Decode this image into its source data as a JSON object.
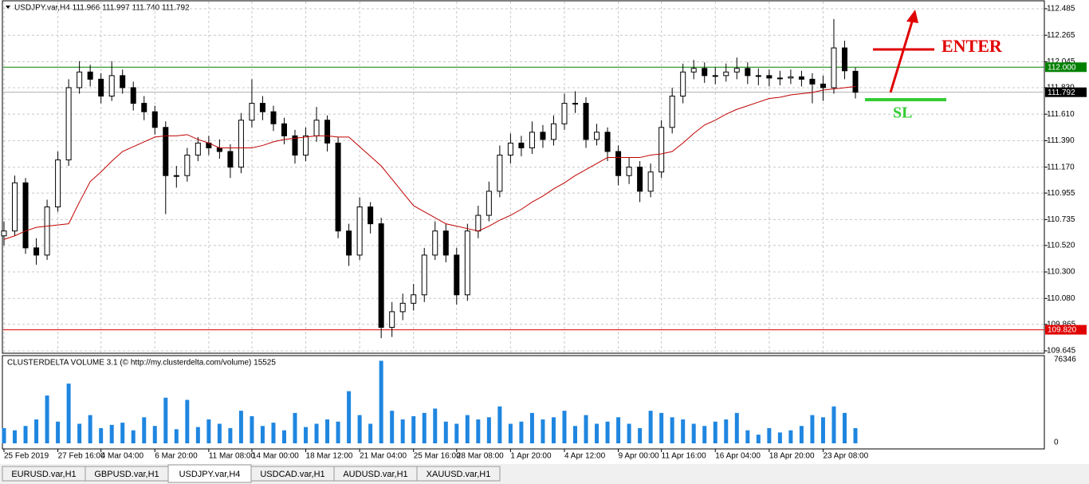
{
  "header": {
    "symbol_info": "USDJPY.var,H4  111.966 111.997 111.740 111.792"
  },
  "chart_data": [
    {
      "type": "candlestick",
      "categories": [
        "25 Feb 2019",
        null,
        null,
        null,
        null,
        "27 Feb 16:00",
        null,
        null,
        null,
        "4 Mar 04:00",
        null,
        null,
        null,
        null,
        "6 Mar 20:00",
        null,
        null,
        null,
        null,
        "11 Mar 08:00",
        null,
        null,
        null,
        "14 Mar 00:00",
        null,
        null,
        null,
        null,
        "18 Mar 12:00",
        null,
        null,
        null,
        null,
        "21 Mar 04:00",
        null,
        null,
        null,
        null,
        "25 Mar 16:00",
        null,
        null,
        null,
        "28 Mar 08:00",
        null,
        null,
        null,
        null,
        "1 Apr 20:00",
        null,
        null,
        null,
        null,
        "4 Apr 12:00",
        null,
        null,
        null,
        null,
        "9 Apr 00:00",
        null,
        null,
        null,
        "11 Apr 16:00",
        null,
        null,
        null,
        null,
        "16 Apr 04:00",
        null,
        null,
        null,
        null,
        "18 Apr 20:00",
        null,
        null,
        null,
        null,
        "23 Apr 08:00",
        null,
        null,
        null
      ],
      "open": [
        110.6,
        110.64,
        111.04,
        110.5,
        110.44,
        110.84,
        111.23,
        111.83,
        111.96,
        111.9,
        111.76,
        111.93,
        111.83,
        111.7,
        111.63,
        111.5,
        111.1,
        111.1,
        111.27,
        111.37,
        111.33,
        111.3,
        111.17,
        111.56,
        111.7,
        111.63,
        111.53,
        111.43,
        111.27,
        111.43,
        111.56,
        111.37,
        110.64,
        110.44,
        110.84,
        110.7,
        109.84,
        109.97,
        110.04,
        110.11,
        110.44,
        110.64,
        110.44,
        110.11,
        110.64,
        110.77,
        110.97,
        111.27,
        111.37,
        111.33,
        111.46,
        111.4,
        111.53,
        111.7,
        111.7,
        111.4,
        111.46,
        111.3,
        111.1,
        111.17,
        110.97,
        111.13,
        111.5,
        111.76,
        111.96,
        111.99,
        111.93,
        111.93,
        111.96,
        111.99,
        111.93,
        111.93,
        111.91,
        111.91,
        111.92,
        111.9,
        111.86,
        111.83,
        112.16,
        111.966
      ],
      "high": [
        110.72,
        111.1,
        111.08,
        110.58,
        110.9,
        111.3,
        111.9,
        112.05,
        112.02,
        111.95,
        112.05,
        111.98,
        111.88,
        111.76,
        111.68,
        111.55,
        111.18,
        111.33,
        111.42,
        111.43,
        111.4,
        111.36,
        111.62,
        111.9,
        111.76,
        111.68,
        111.58,
        111.48,
        111.5,
        111.67,
        111.6,
        111.42,
        110.7,
        110.92,
        110.88,
        110.75,
        110.05,
        110.12,
        110.2,
        110.5,
        110.72,
        110.7,
        110.5,
        110.7,
        110.85,
        111.05,
        111.35,
        111.45,
        111.43,
        111.55,
        111.52,
        111.6,
        111.78,
        111.8,
        111.75,
        111.53,
        111.5,
        111.35,
        111.25,
        111.22,
        111.2,
        111.56,
        111.83,
        112.03,
        112.06,
        112.04,
        112.0,
        112.03,
        112.08,
        112.04,
        111.99,
        111.98,
        111.97,
        111.98,
        111.97,
        111.95,
        111.93,
        112.4,
        112.22,
        111.997
      ],
      "low": [
        110.52,
        110.6,
        110.45,
        110.36,
        110.4,
        110.8,
        111.18,
        111.78,
        111.84,
        111.7,
        111.72,
        111.78,
        111.64,
        111.56,
        111.44,
        110.78,
        111.0,
        111.05,
        111.22,
        111.27,
        111.24,
        111.08,
        111.12,
        111.5,
        111.56,
        111.47,
        111.36,
        111.2,
        111.22,
        111.38,
        111.3,
        110.58,
        110.35,
        110.4,
        110.62,
        109.75,
        109.76,
        109.9,
        109.98,
        110.05,
        110.4,
        110.38,
        110.03,
        110.06,
        110.58,
        110.72,
        110.92,
        111.2,
        111.26,
        111.28,
        111.33,
        111.35,
        111.48,
        111.62,
        111.33,
        111.35,
        111.22,
        111.02,
        111.03,
        110.88,
        110.92,
        111.08,
        111.45,
        111.7,
        111.9,
        111.87,
        111.86,
        111.88,
        111.9,
        111.86,
        111.85,
        111.84,
        111.85,
        111.86,
        111.84,
        111.7,
        111.72,
        111.78,
        111.9,
        111.74
      ],
      "close": [
        110.64,
        111.04,
        110.5,
        110.44,
        110.84,
        111.23,
        111.83,
        111.96,
        111.9,
        111.76,
        111.93,
        111.83,
        111.7,
        111.63,
        111.5,
        111.1,
        111.1,
        111.27,
        111.37,
        111.33,
        111.3,
        111.17,
        111.56,
        111.7,
        111.63,
        111.53,
        111.43,
        111.27,
        111.43,
        111.56,
        111.37,
        110.64,
        110.44,
        110.84,
        110.7,
        109.84,
        109.97,
        110.04,
        110.11,
        110.44,
        110.64,
        110.44,
        110.11,
        110.64,
        110.77,
        110.97,
        111.27,
        111.37,
        111.33,
        111.46,
        111.4,
        111.53,
        111.7,
        111.7,
        111.4,
        111.46,
        111.3,
        111.1,
        111.17,
        110.97,
        111.13,
        111.5,
        111.76,
        111.96,
        111.99,
        111.93,
        111.93,
        111.96,
        111.99,
        111.93,
        111.93,
        111.91,
        111.91,
        111.92,
        111.9,
        111.86,
        111.83,
        112.16,
        111.97,
        111.792
      ],
      "moving_average": {
        "color": "#c00000",
        "values": [
          110.57,
          110.6,
          110.64,
          110.67,
          110.68,
          110.69,
          110.7,
          110.88,
          111.05,
          111.13,
          111.22,
          111.3,
          111.34,
          111.38,
          111.42,
          111.43,
          111.43,
          111.44,
          111.4,
          111.37,
          111.33,
          111.33,
          111.33,
          111.33,
          111.35,
          111.38,
          111.4,
          111.41,
          111.42,
          111.43,
          111.43,
          111.42,
          111.42,
          111.34,
          111.26,
          111.18,
          111.07,
          110.96,
          110.85,
          110.8,
          110.75,
          110.7,
          110.68,
          110.66,
          110.64,
          110.68,
          110.73,
          110.77,
          110.82,
          110.88,
          110.93,
          110.99,
          111.04,
          111.1,
          111.15,
          111.2,
          111.25,
          111.25,
          111.25,
          111.25,
          111.27,
          111.28,
          111.3,
          111.37,
          111.45,
          111.52,
          111.56,
          111.61,
          111.65,
          111.68,
          111.71,
          111.74,
          111.75,
          111.77,
          111.78,
          111.79,
          111.81,
          111.82,
          111.83,
          111.84
        ]
      },
      "ylim": [
        109.645,
        112.485
      ],
      "yticks": [
        112.485,
        112.265,
        112.045,
        {
          "value": 111.83,
          "label": "111.830"
        },
        {
          "value": 111.61,
          "label": "111.610"
        },
        {
          "value": 111.39,
          "label": "111.390"
        },
        {
          "value": 111.17,
          "label": "111.170"
        },
        110.955,
        110.735,
        {
          "value": 110.52,
          "label": "110.520"
        },
        {
          "value": 110.3,
          "label": "110.300"
        },
        {
          "value": 110.08,
          "label": "110.080"
        },
        109.865,
        109.645
      ],
      "grid": true,
      "levels": [
        {
          "value": 112,
          "label": "112.000",
          "color": "#008000"
        },
        {
          "value": 111.792,
          "label": "111.792",
          "color": "#b0b0b0"
        },
        {
          "value": 109.82,
          "label": "109.820",
          "color": "#e00000"
        }
      ]
    },
    {
      "type": "bar",
      "title": "CLUSTERDELTA VOLUME 3.1 (© http://my.clusterdelta.com/volume) 15525",
      "color": "#1f86e0",
      "values": [
        14000,
        12000,
        16000,
        22000,
        44000,
        20000,
        55000,
        18000,
        26000,
        14000,
        17000,
        19000,
        12000,
        24000,
        16000,
        42000,
        13000,
        40000,
        15000,
        22000,
        18000,
        14000,
        30000,
        25000,
        16000,
        19000,
        12000,
        28000,
        15000,
        18000,
        22000,
        20000,
        48000,
        26000,
        18000,
        76000,
        30000,
        22000,
        25000,
        28000,
        32000,
        20000,
        18000,
        26000,
        22000,
        24000,
        34000,
        18000,
        20000,
        28000,
        22000,
        24000,
        30000,
        16000,
        26000,
        18000,
        20000,
        24000,
        18000,
        14000,
        30000,
        28000,
        24000,
        22000,
        18000,
        16000,
        20000,
        22000,
        28000,
        12000,
        8000,
        14000,
        10000,
        12000,
        16000,
        26000,
        24000,
        34000,
        28000,
        14000
      ],
      "ylim": [
        0,
        76346
      ],
      "yticks": [
        0,
        76346
      ]
    }
  ],
  "annotations": {
    "enter": "ENTER",
    "sl": "SL"
  },
  "tabs": [
    "EURUSD.var,H1",
    "GBPUSD.var,H1",
    "USDJPY.var,H4",
    "USDCAD.var,H1",
    "AUDUSD.var,H1",
    "XAUUSD.var,H1"
  ]
}
